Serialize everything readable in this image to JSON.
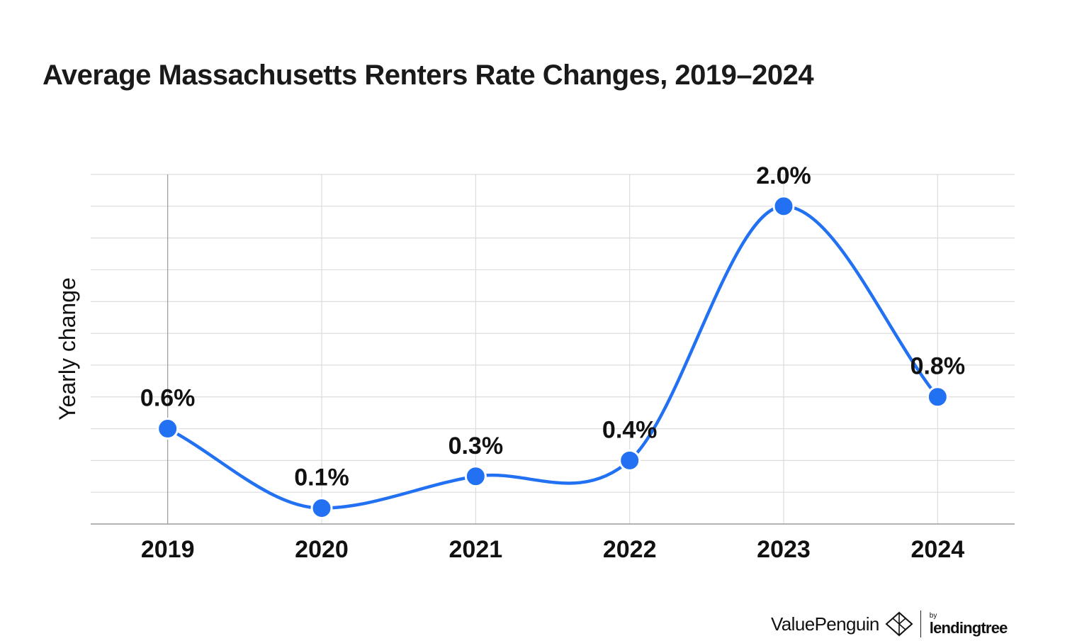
{
  "title": "Average Massachusetts Renters Rate Changes, 2019–2024",
  "chart_data": {
    "type": "line",
    "title": "Average Massachusetts Renters Rate Changes, 2019–2024",
    "xlabel": "",
    "ylabel": "Yearly change",
    "categories": [
      "2019",
      "2020",
      "2021",
      "2022",
      "2023",
      "2024"
    ],
    "values": [
      0.6,
      0.1,
      0.3,
      0.4,
      2.0,
      0.8
    ],
    "data_labels": [
      "0.6%",
      "0.1%",
      "0.3%",
      "0.4%",
      "2.0%",
      "0.8%"
    ],
    "ylim": [
      0.0,
      2.2
    ],
    "y_tick_labels_shown": false,
    "grid": true,
    "smooth": true,
    "line_color": "#2271f2",
    "marker_color": "#2271f2"
  },
  "footer": {
    "brand": "ValuePenguin",
    "by": "by",
    "partner": "lendingtree"
  }
}
